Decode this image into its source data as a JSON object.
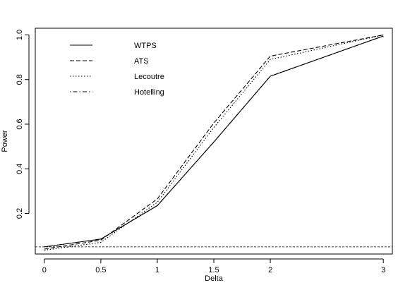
{
  "chart_data": {
    "type": "line",
    "xlabel": "Delta",
    "ylabel": "Power",
    "x": [
      0,
      0.5,
      1,
      1.5,
      2,
      3
    ],
    "x_ticks": [
      0,
      0.5,
      1,
      1.5,
      2,
      3
    ],
    "x_tick_labels": [
      "0",
      "0.5",
      "1",
      "1.5",
      "2",
      "3"
    ],
    "y_ticks": [
      0.2,
      0.4,
      0.6,
      0.8,
      1.0
    ],
    "y_tick_labels": [
      "0.2",
      "0.4",
      "0.6",
      "0.8",
      "1.0"
    ],
    "xlim": [
      -0.08,
      3.08
    ],
    "ylim": [
      0.018,
      1.03
    ],
    "reference_line": 0.05,
    "legend_position": "top-left",
    "series": [
      {
        "name": "WTPS",
        "linestyle": "solid",
        "values": [
          0.05,
          0.085,
          0.235,
          0.52,
          0.815,
          0.995
        ]
      },
      {
        "name": "ATS",
        "linestyle": "dashed",
        "values": [
          0.04,
          0.08,
          0.265,
          0.605,
          0.905,
          1.0
        ]
      },
      {
        "name": "Lecoutre",
        "linestyle": "dotted",
        "values": [
          0.035,
          0.07,
          0.25,
          0.585,
          0.89,
          1.0
        ]
      },
      {
        "name": "Hotelling",
        "linestyle": "dotdash",
        "values": [
          0.05,
          0.085,
          0.235,
          0.52,
          0.815,
          0.995
        ]
      }
    ]
  }
}
